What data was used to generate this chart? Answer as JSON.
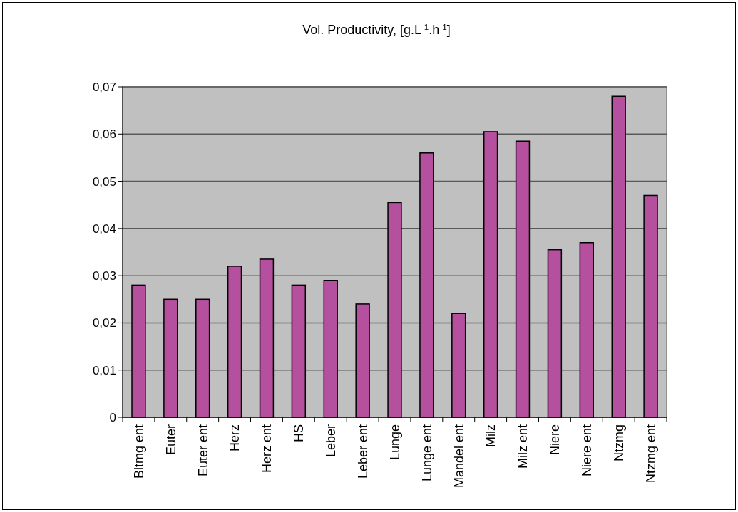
{
  "chart_data": {
    "type": "bar",
    "title": "Vol. Productivity, [g.L$^{-1}$.h$^{-1}$]",
    "categories": [
      "Bltmg ent",
      "Euter",
      "Euter ent",
      "Herz",
      "Herz ent",
      "HS",
      "Leber",
      "Leber ent",
      "Lunge",
      "Lunge ent",
      "Mandel ent",
      "Milz",
      "Milz ent",
      "Niere",
      "Niere ent",
      "Ntzmg",
      "Ntzmg ent"
    ],
    "values": [
      0.028,
      0.025,
      0.025,
      0.032,
      0.0335,
      0.028,
      0.029,
      0.024,
      0.0455,
      0.056,
      0.022,
      0.0605,
      0.0585,
      0.0355,
      0.037,
      0.068,
      0.047
    ],
    "color": "#b5509f",
    "ylim": [
      0,
      0.07
    ],
    "yticks": [
      0,
      {
        "value": 0.01,
        "label": "0,01"
      },
      {
        "value": 0.02,
        "label": "0,02"
      },
      {
        "value": 0.03,
        "label": "0,03"
      },
      {
        "value": 0.04,
        "label": "0,04"
      },
      {
        "value": 0.05,
        "label": "0,05"
      },
      {
        "value": 0.06,
        "label": "0,06"
      },
      {
        "value": 0.07,
        "label": "0,07"
      }
    ],
    "grid": "y"
  }
}
